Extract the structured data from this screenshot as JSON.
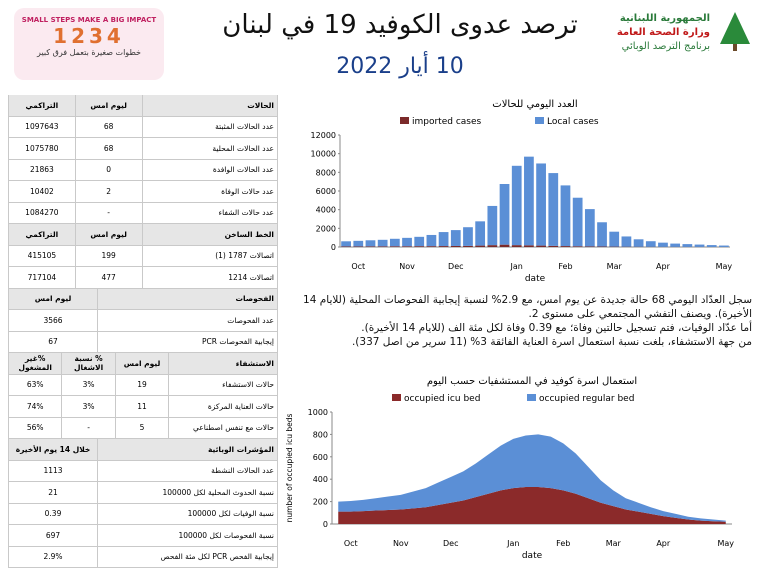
{
  "header": {
    "title": "ترصد عدوى الكوفيد 19 في لبنان",
    "date": "10 أيار 2022",
    "logo_en": "SMALL STEPS MAKE A BIG IMPACT",
    "logo_ar": "خطوات صغيرة بتعمل فرق كبير",
    "ministry": [
      "الجمهورية اللبنانية",
      "وزارة الصحة العامة",
      "برنامج الترصد الوبائي"
    ]
  },
  "table": {
    "sections": [
      {
        "header": [
          "الحالات",
          "ليوم امس",
          "التراكمي"
        ],
        "rows": [
          [
            "عدد الحالات المثبتة",
            "68",
            "1097643"
          ],
          [
            "عدد الحالات المحلية",
            "68",
            "1075780"
          ],
          [
            "عدد الحالات الوافدة",
            "0",
            "21863"
          ],
          [
            "عدد حالات الوفاة",
            "2",
            "10402"
          ],
          [
            "عدد حالات الشفاء",
            "-",
            "1084270"
          ]
        ]
      },
      {
        "header": [
          "الخط الساخن",
          "ليوم امس",
          "التراكمي"
        ],
        "rows": [
          [
            "اتصالات 1787 (1)",
            "199",
            "415105"
          ],
          [
            "اتصالات 1214",
            "477",
            "717104"
          ]
        ]
      },
      {
        "header": [
          "الفحوصات",
          "ليوم امس"
        ],
        "rows": [
          [
            "عدد الفحوصات",
            "3566"
          ],
          [
            "إيجابية الفحوصات PCR",
            "67"
          ]
        ]
      },
      {
        "header": [
          "الاستشفاء",
          "ليوم امس",
          "% نسبة الاشغال",
          "%غير المشغول"
        ],
        "rows": [
          [
            "حالات الاستشفاء",
            "19",
            "3%",
            "63%"
          ],
          [
            "حالات العناية المركزة",
            "11",
            "3%",
            "74%"
          ],
          [
            "حالات مع تنفس اصطناعي",
            "5",
            "-",
            "56%"
          ]
        ]
      },
      {
        "header": [
          "المؤشرات الوبائية",
          "خلال 14 يوم الأخيرة"
        ],
        "rows": [
          [
            "عدد الحالات النشطة",
            "1113"
          ],
          [
            "نسبة الحدوث المحلية لكل 100000",
            "21"
          ],
          [
            "نسبة الوفيات لكل 100000",
            "0.39"
          ],
          [
            "نسبة الفحوصات لكل 100000",
            "697"
          ],
          [
            "إيجابية الفحص PCR لكل مئة الفحص",
            "2.9%"
          ]
        ]
      }
    ]
  },
  "text": [
    "سجل العدّاد اليومي 68 حالة جديدة عن يوم امس، مع 2.9% لنسبة إيجابية الفحوصات المحلية (للايام 14 الأخيرة). ويصنف التفشي المجتمعي على مستوى 2.",
    "أما عدّاد الوفيات، فتم تسجيل حالتين وفاة؛ مع 0.39 وفاة لكل مئة الف (للايام 14 الأخيرة).",
    "من جهة الاستشفاء، بلغت نسبة استعمال اسرة العناية الفائقة 3% (11 سرير من اصل 337)."
  ],
  "chart_data": [
    {
      "type": "bar",
      "title": "العدد اليومي للحالات",
      "x_label": "date",
      "stacked": true,
      "categories": [
        null,
        "Oct",
        null,
        null,
        null,
        "Nov",
        null,
        null,
        null,
        "Dec",
        null,
        null,
        null,
        null,
        "Jan",
        null,
        null,
        null,
        "Feb",
        null,
        null,
        null,
        "Mar",
        null,
        null,
        null,
        "Apr",
        null,
        null,
        null,
        null,
        "May"
      ],
      "series": [
        {
          "name": "imported cases",
          "color": "#7b2a2a",
          "values": [
            60,
            60,
            70,
            70,
            80,
            80,
            90,
            90,
            100,
            110,
            120,
            150,
            200,
            250,
            200,
            180,
            150,
            120,
            100,
            80,
            60,
            50,
            40,
            30,
            25,
            20,
            15,
            15,
            10,
            10,
            5,
            5
          ]
        },
        {
          "name": "Local cases",
          "color": "#5b8fd6",
          "values": [
            550,
            600,
            650,
            700,
            800,
            900,
            1000,
            1200,
            1500,
            1700,
            2000,
            2600,
            4200,
            6500,
            8500,
            9500,
            8800,
            7800,
            6500,
            5200,
            4000,
            2600,
            1600,
            1100,
            800,
            600,
            450,
            350,
            300,
            250,
            200,
            150
          ]
        }
      ],
      "ylim": [
        0,
        12000
      ],
      "yticks": [
        0,
        2000,
        4000,
        6000,
        8000,
        10000,
        12000
      ],
      "legend": "top"
    },
    {
      "type": "area",
      "title": "استعمال اسرة كوفيد في المستشفيات حسب اليوم",
      "x_label": "date",
      "y_label": "number of occupied icu beds",
      "stacked": true,
      "categories": [
        null,
        "Oct",
        null,
        null,
        null,
        "Nov",
        null,
        null,
        null,
        "Dec",
        null,
        null,
        null,
        null,
        "Jan",
        null,
        null,
        null,
        "Feb",
        null,
        null,
        null,
        "Mar",
        null,
        null,
        null,
        "Apr",
        null,
        null,
        null,
        null,
        "May"
      ],
      "series": [
        {
          "name": "occupied icu bed",
          "color": "#8b2a2a",
          "values": [
            110,
            110,
            115,
            120,
            125,
            130,
            140,
            150,
            170,
            190,
            210,
            240,
            270,
            300,
            320,
            330,
            330,
            320,
            300,
            270,
            230,
            190,
            160,
            130,
            110,
            90,
            70,
            55,
            40,
            30,
            25,
            20
          ]
        },
        {
          "name": "occupied regular bed",
          "color": "#5b8fd6",
          "values": [
            90,
            95,
            100,
            110,
            120,
            130,
            150,
            170,
            200,
            230,
            260,
            300,
            350,
            400,
            440,
            460,
            470,
            460,
            420,
            360,
            280,
            200,
            140,
            100,
            80,
            60,
            45,
            35,
            25,
            20,
            15,
            10
          ]
        }
      ],
      "ylim": [
        0,
        1000
      ],
      "yticks": [
        0,
        200,
        400,
        600,
        800,
        1000
      ],
      "legend": "top"
    }
  ]
}
